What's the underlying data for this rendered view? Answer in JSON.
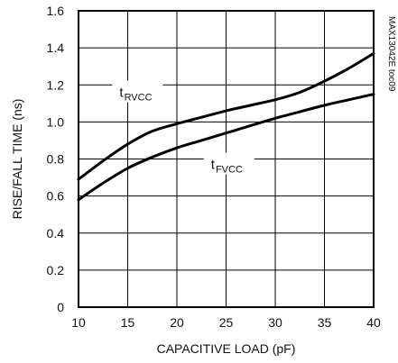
{
  "chart_data": {
    "type": "line",
    "title": "",
    "xlabel": "CAPACITIVE LOAD (pF)",
    "ylabel": "RISE/FALL TIME (ns)",
    "xlim": [
      10,
      40
    ],
    "ylim": [
      0,
      1.6
    ],
    "x_ticks": [
      10,
      15,
      20,
      25,
      30,
      35,
      40
    ],
    "y_ticks": [
      0,
      0.2,
      0.4,
      0.6,
      0.8,
      1.0,
      1.2,
      1.4,
      1.6
    ],
    "x_tick_labels": [
      "10",
      "15",
      "20",
      "25",
      "30",
      "35",
      "40"
    ],
    "y_tick_labels": [
      "0",
      "0.2",
      "0.4",
      "0.6",
      "0.8",
      "1.0",
      "1.2",
      "1.4",
      "1.6"
    ],
    "grid": true,
    "side_note": "MAX13042E toc09",
    "series": [
      {
        "label_main": "t",
        "label_sub": "RVCC",
        "color": "#000000",
        "x": [
          10,
          12.5,
          15,
          17.5,
          20,
          22.5,
          25,
          27.5,
          30,
          32.5,
          35,
          37.5,
          40
        ],
        "y": [
          0.69,
          0.79,
          0.88,
          0.95,
          0.99,
          1.025,
          1.06,
          1.09,
          1.12,
          1.16,
          1.22,
          1.29,
          1.37
        ]
      },
      {
        "label_main": "t",
        "label_sub": "FVCC",
        "color": "#000000",
        "x": [
          10,
          12.5,
          15,
          17.5,
          20,
          22.5,
          25,
          27.5,
          30,
          32.5,
          35,
          37.5,
          40
        ],
        "y": [
          0.58,
          0.67,
          0.75,
          0.81,
          0.86,
          0.9,
          0.94,
          0.98,
          1.02,
          1.055,
          1.09,
          1.12,
          1.15
        ]
      }
    ]
  }
}
